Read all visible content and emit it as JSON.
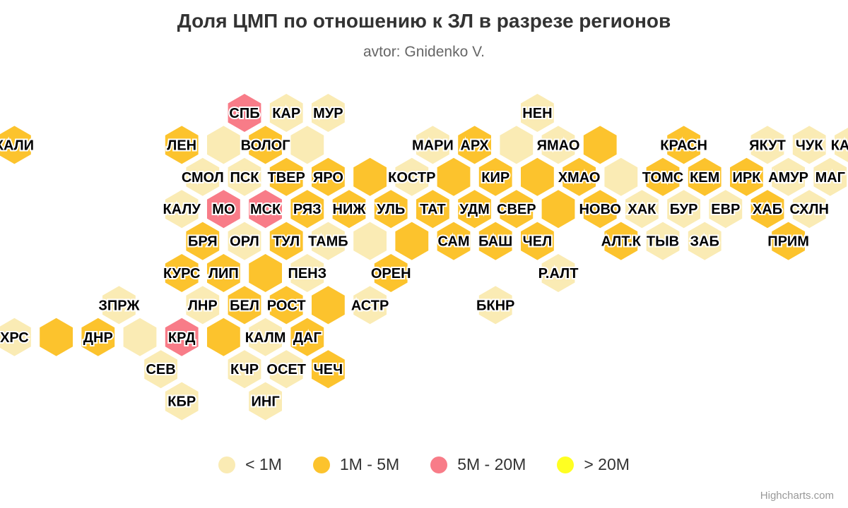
{
  "title": "Доля ЦМП по отношению к ЗЛ в разрезе регионов",
  "subtitle": "avtor: Gnidenko V.",
  "credits": "Highcharts.com",
  "legend": [
    {
      "label": "< 1M",
      "color": "#FAEBB4"
    },
    {
      "label": "1M - 5M",
      "color": "#FCC32D"
    },
    {
      "label": "5M - 20M",
      "color": "#F87C88"
    },
    {
      "label": "> 20M",
      "color": "#FFFF22"
    }
  ],
  "chart_data": {
    "type": "tilemap-hexagon",
    "categories": [
      "< 1M",
      "1M - 5M",
      "5M - 20M",
      "> 20M"
    ],
    "tiles": [
      {
        "label": "СПБ",
        "x": 0,
        "y": 5,
        "cat": 2
      },
      {
        "label": "КАР",
        "x": 0,
        "y": 6,
        "cat": 0
      },
      {
        "label": "МУР",
        "x": 0,
        "y": 7,
        "cat": 0
      },
      {
        "label": "НЕН",
        "x": 0,
        "y": 12,
        "cat": 0
      },
      {
        "label": "КАЛИ",
        "x": 1,
        "y": 0,
        "cat": 1
      },
      {
        "label": "ЛЕН",
        "x": 1,
        "y": 4,
        "cat": 1
      },
      {
        "label": "",
        "x": 1,
        "y": 5,
        "cat": 0
      },
      {
        "label": "ВОЛОГ",
        "x": 1,
        "y": 6,
        "cat": 1
      },
      {
        "label": "",
        "x": 1,
        "y": 7,
        "cat": 0
      },
      {
        "label": "МАРИ",
        "x": 1,
        "y": 10,
        "cat": 0
      },
      {
        "label": "АРХ",
        "x": 1,
        "y": 11,
        "cat": 1
      },
      {
        "label": "",
        "x": 1,
        "y": 12,
        "cat": 0
      },
      {
        "label": "ЯМАО",
        "x": 1,
        "y": 13,
        "cat": 0
      },
      {
        "label": "",
        "x": 1,
        "y": 14,
        "cat": 1
      },
      {
        "label": "КРАСН",
        "x": 1,
        "y": 16,
        "cat": 1
      },
      {
        "label": "ЯКУТ",
        "x": 1,
        "y": 18,
        "cat": 0
      },
      {
        "label": "ЧУК",
        "x": 1,
        "y": 19,
        "cat": 0
      },
      {
        "label": "КАМЧ",
        "x": 1,
        "y": 20,
        "cat": 0
      },
      {
        "label": "СМОЛ",
        "x": 2,
        "y": 4,
        "cat": 0
      },
      {
        "label": "ПСК",
        "x": 2,
        "y": 5,
        "cat": 0
      },
      {
        "label": "ТВЕР",
        "x": 2,
        "y": 6,
        "cat": 1
      },
      {
        "label": "ЯРО",
        "x": 2,
        "y": 7,
        "cat": 1
      },
      {
        "label": "",
        "x": 2,
        "y": 8,
        "cat": 1
      },
      {
        "label": "КОСТР",
        "x": 2,
        "y": 9,
        "cat": 0
      },
      {
        "label": "",
        "x": 2,
        "y": 10,
        "cat": 1
      },
      {
        "label": "КИР",
        "x": 2,
        "y": 11,
        "cat": 1
      },
      {
        "label": "",
        "x": 2,
        "y": 12,
        "cat": 1
      },
      {
        "label": "ХМАО",
        "x": 2,
        "y": 13,
        "cat": 1
      },
      {
        "label": "",
        "x": 2,
        "y": 14,
        "cat": 0
      },
      {
        "label": "ТОМС",
        "x": 2,
        "y": 15,
        "cat": 1
      },
      {
        "label": "КЕМ",
        "x": 2,
        "y": 16,
        "cat": 1
      },
      {
        "label": "ИРК",
        "x": 2,
        "y": 17,
        "cat": 1
      },
      {
        "label": "АМУР",
        "x": 2,
        "y": 18,
        "cat": 0
      },
      {
        "label": "МАГ",
        "x": 2,
        "y": 19,
        "cat": 0
      },
      {
        "label": "КАЛУ",
        "x": 3,
        "y": 4,
        "cat": 0
      },
      {
        "label": "МО",
        "x": 3,
        "y": 5,
        "cat": 2
      },
      {
        "label": "МСК",
        "x": 3,
        "y": 6,
        "cat": 2
      },
      {
        "label": "РЯЗ",
        "x": 3,
        "y": 7,
        "cat": 1
      },
      {
        "label": "НИЖ",
        "x": 3,
        "y": 8,
        "cat": 1
      },
      {
        "label": "УЛЬ",
        "x": 3,
        "y": 9,
        "cat": 1
      },
      {
        "label": "ТАТ",
        "x": 3,
        "y": 10,
        "cat": 1
      },
      {
        "label": "УДМ",
        "x": 3,
        "y": 11,
        "cat": 1
      },
      {
        "label": "СВЕР",
        "x": 3,
        "y": 12,
        "cat": 1
      },
      {
        "label": "",
        "x": 3,
        "y": 13,
        "cat": 1
      },
      {
        "label": "НОВО",
        "x": 3,
        "y": 14,
        "cat": 1
      },
      {
        "label": "ХАК",
        "x": 3,
        "y": 15,
        "cat": 0
      },
      {
        "label": "БУР",
        "x": 3,
        "y": 16,
        "cat": 0
      },
      {
        "label": "ЕВР",
        "x": 3,
        "y": 17,
        "cat": 0
      },
      {
        "label": "ХАБ",
        "x": 3,
        "y": 18,
        "cat": 1
      },
      {
        "label": "СХЛН",
        "x": 3,
        "y": 19,
        "cat": 0
      },
      {
        "label": "БРЯ",
        "x": 4,
        "y": 4,
        "cat": 1
      },
      {
        "label": "ОРЛ",
        "x": 4,
        "y": 5,
        "cat": 0
      },
      {
        "label": "ТУЛ",
        "x": 4,
        "y": 6,
        "cat": 1
      },
      {
        "label": "ТАМБ",
        "x": 4,
        "y": 7,
        "cat": 0
      },
      {
        "label": "",
        "x": 4,
        "y": 8,
        "cat": 0
      },
      {
        "label": "",
        "x": 4,
        "y": 9,
        "cat": 1
      },
      {
        "label": "САМ",
        "x": 4,
        "y": 10,
        "cat": 1
      },
      {
        "label": "БАШ",
        "x": 4,
        "y": 11,
        "cat": 1
      },
      {
        "label": "ЧЕЛ",
        "x": 4,
        "y": 12,
        "cat": 1
      },
      {
        "label": "АЛТ.К",
        "x": 4,
        "y": 14,
        "cat": 1
      },
      {
        "label": "ТЫВ",
        "x": 4,
        "y": 15,
        "cat": 0
      },
      {
        "label": "ЗАБ",
        "x": 4,
        "y": 16,
        "cat": 0
      },
      {
        "label": "ПРИМ",
        "x": 4,
        "y": 18,
        "cat": 1
      },
      {
        "label": "КУРС",
        "x": 5,
        "y": 4,
        "cat": 1
      },
      {
        "label": "ЛИП",
        "x": 5,
        "y": 5,
        "cat": 1
      },
      {
        "label": "",
        "x": 5,
        "y": 6,
        "cat": 1
      },
      {
        "label": "ПЕНЗ",
        "x": 5,
        "y": 7,
        "cat": 0
      },
      {
        "label": "ОРЕН",
        "x": 5,
        "y": 9,
        "cat": 1
      },
      {
        "label": "Р.АЛТ",
        "x": 5,
        "y": 13,
        "cat": 0
      },
      {
        "label": "ЗПРЖ",
        "x": 6,
        "y": 2,
        "cat": 0
      },
      {
        "label": "ЛНР",
        "x": 6,
        "y": 4,
        "cat": 0
      },
      {
        "label": "БЕЛ",
        "x": 6,
        "y": 5,
        "cat": 1
      },
      {
        "label": "РОСТ",
        "x": 6,
        "y": 6,
        "cat": 1
      },
      {
        "label": "",
        "x": 6,
        "y": 7,
        "cat": 1
      },
      {
        "label": "АСТР",
        "x": 6,
        "y": 8,
        "cat": 0
      },
      {
        "label": "БКНР",
        "x": 6,
        "y": 11,
        "cat": 0
      },
      {
        "label": "ХРС",
        "x": 7,
        "y": 0,
        "cat": 0
      },
      {
        "label": "",
        "x": 7,
        "y": 1,
        "cat": 1
      },
      {
        "label": "ДНР",
        "x": 7,
        "y": 2,
        "cat": 1
      },
      {
        "label": "",
        "x": 7,
        "y": 3,
        "cat": 0
      },
      {
        "label": "КРД",
        "x": 7,
        "y": 4,
        "cat": 2
      },
      {
        "label": "",
        "x": 7,
        "y": 5,
        "cat": 1
      },
      {
        "label": "КАЛМ",
        "x": 7,
        "y": 6,
        "cat": 0
      },
      {
        "label": "ДАГ",
        "x": 7,
        "y": 7,
        "cat": 1
      },
      {
        "label": "СЕВ",
        "x": 8,
        "y": 3,
        "cat": 0
      },
      {
        "label": "КЧР",
        "x": 8,
        "y": 5,
        "cat": 0
      },
      {
        "label": "ОСЕТ",
        "x": 8,
        "y": 6,
        "cat": 0
      },
      {
        "label": "ЧЕЧ",
        "x": 8,
        "y": 7,
        "cat": 1
      },
      {
        "label": "КБР",
        "x": 9,
        "y": 4,
        "cat": 0
      },
      {
        "label": "ИНГ",
        "x": 9,
        "y": 6,
        "cat": 0
      }
    ]
  }
}
